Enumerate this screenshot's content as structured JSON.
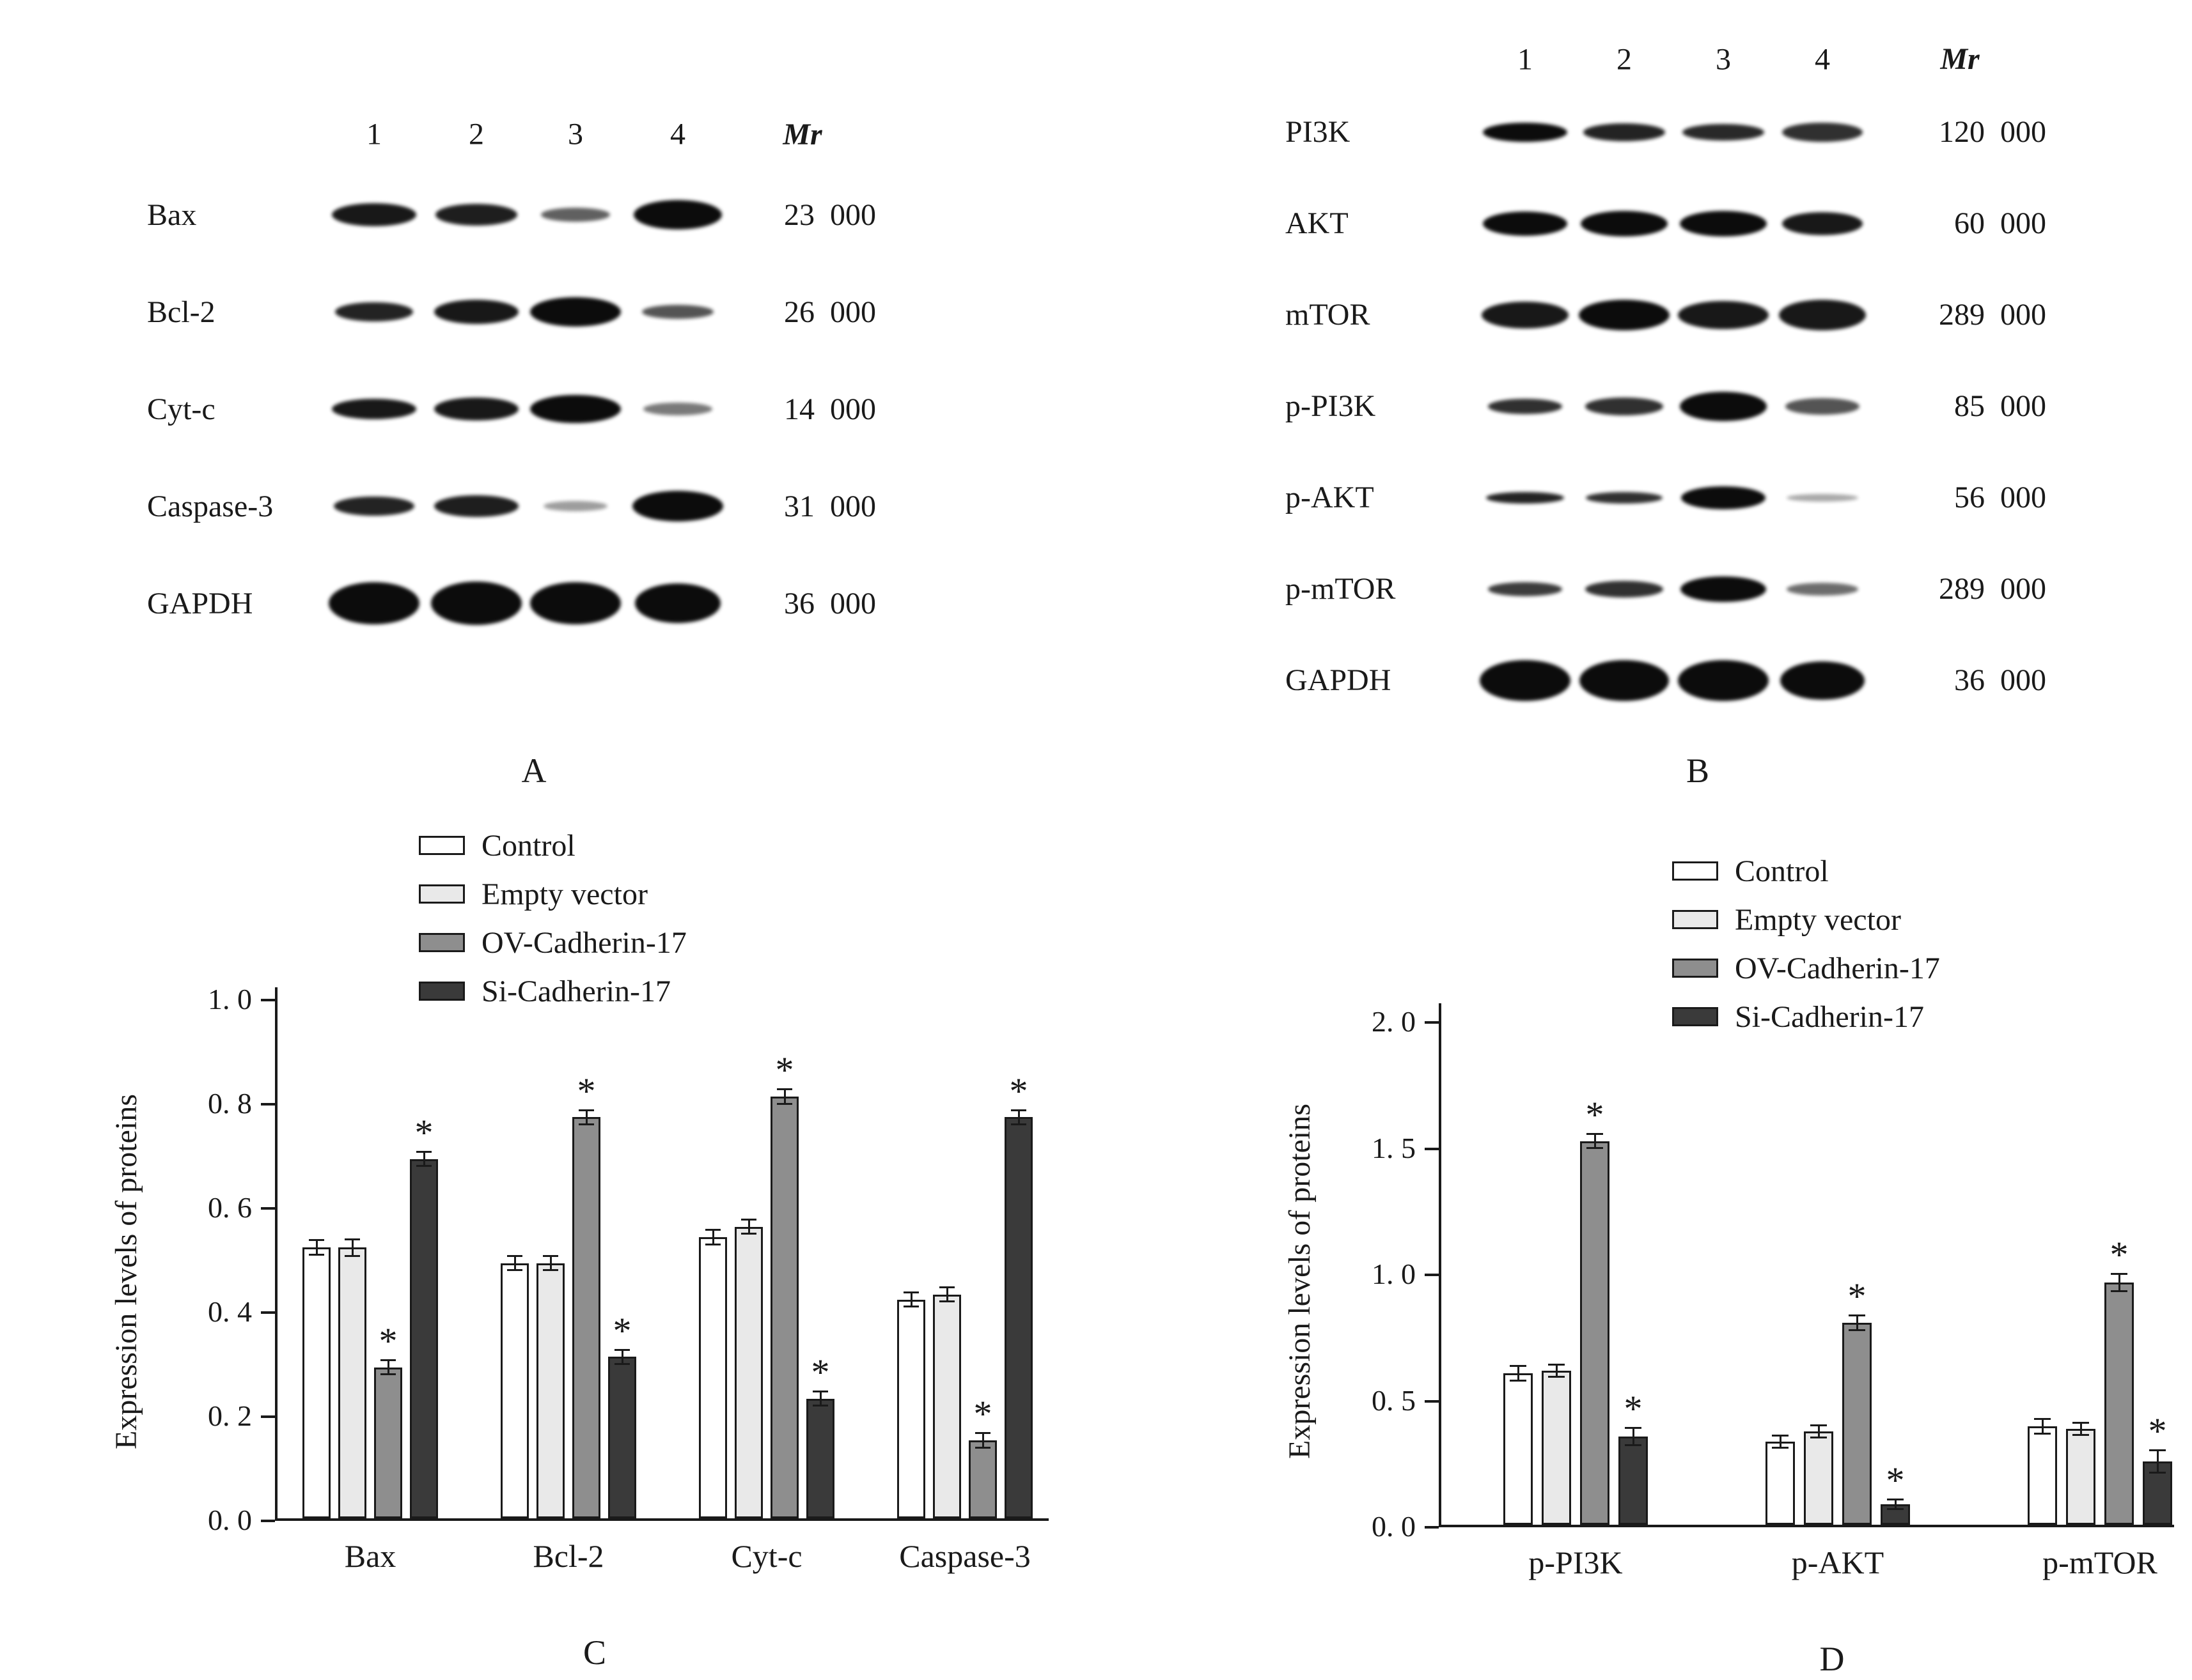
{
  "panels": {
    "A": {
      "label": "A",
      "lane_headers": [
        "1",
        "2",
        "3",
        "4"
      ],
      "mr_header": "Mr",
      "rows": [
        {
          "protein": "Bax",
          "mr": "23  000",
          "bands": [
            [
              132,
              36,
              0.95
            ],
            [
              128,
              34,
              0.92
            ],
            [
              108,
              22,
              0.65
            ],
            [
              138,
              46,
              1
            ]
          ]
        },
        {
          "protein": "Bcl-2",
          "mr": "26  000",
          "bands": [
            [
              122,
              30,
              0.9
            ],
            [
              132,
              38,
              0.95
            ],
            [
              142,
              46,
              1
            ],
            [
              112,
              22,
              0.7
            ]
          ]
        },
        {
          "protein": "Cyt-c",
          "mr": "14  000",
          "bands": [
            [
              132,
              32,
              0.95
            ],
            [
              132,
              36,
              0.95
            ],
            [
              142,
              44,
              1
            ],
            [
              108,
              20,
              0.55
            ]
          ]
        },
        {
          "protein": "Caspase-3",
          "mr": "31  000",
          "bands": [
            [
              126,
              30,
              0.9
            ],
            [
              132,
              34,
              0.92
            ],
            [
              100,
              16,
              0.4
            ],
            [
              142,
              48,
              1
            ]
          ]
        },
        {
          "protein": "GAPDH",
          "mr": "36  000",
          "bands": [
            [
              142,
              66,
              1
            ],
            [
              142,
              68,
              1
            ],
            [
              142,
              66,
              1
            ],
            [
              134,
              62,
              1
            ]
          ]
        }
      ]
    },
    "B": {
      "label": "B",
      "lane_headers": [
        "1",
        "2",
        "3",
        "4"
      ],
      "mr_header": "Mr",
      "rows": [
        {
          "protein": "PI3K",
          "mr": "120  000",
          "bands": [
            [
              132,
              30,
              1
            ],
            [
              128,
              28,
              0.9
            ],
            [
              128,
              26,
              0.88
            ],
            [
              126,
              30,
              0.85
            ]
          ]
        },
        {
          "protein": "AKT",
          "mr": "60  000",
          "bands": [
            [
              132,
              38,
              1
            ],
            [
              136,
              40,
              1
            ],
            [
              136,
              40,
              1
            ],
            [
              126,
              36,
              0.95
            ]
          ]
        },
        {
          "protein": "mTOR",
          "mr": "289  000",
          "bands": [
            [
              136,
              42,
              0.95
            ],
            [
              142,
              48,
              1
            ],
            [
              142,
              44,
              0.95
            ],
            [
              136,
              48,
              0.95
            ]
          ]
        },
        {
          "protein": "p-PI3K",
          "mr": "85  000",
          "bands": [
            [
              116,
              24,
              0.85
            ],
            [
              122,
              28,
              0.85
            ],
            [
              136,
              46,
              1
            ],
            [
              116,
              26,
              0.7
            ]
          ]
        },
        {
          "protein": "p-AKT",
          "mr": "56  000",
          "bands": [
            [
              122,
              18,
              0.9
            ],
            [
              120,
              18,
              0.85
            ],
            [
              132,
              36,
              1
            ],
            [
              112,
              12,
              0.35
            ]
          ]
        },
        {
          "protein": "p-mTOR",
          "mr": "289  000",
          "bands": [
            [
              116,
              22,
              0.8
            ],
            [
              122,
              26,
              0.85
            ],
            [
              134,
              40,
              1
            ],
            [
              112,
              20,
              0.6
            ]
          ]
        },
        {
          "protein": "GAPDH",
          "mr": "36  000",
          "bands": [
            [
              142,
              64,
              1
            ],
            [
              140,
              64,
              1
            ],
            [
              142,
              64,
              1
            ],
            [
              132,
              60,
              1
            ]
          ]
        }
      ]
    },
    "C": {
      "label": "C"
    },
    "D": {
      "label": "D"
    }
  },
  "chart_data": [
    {
      "id": "C",
      "type": "bar",
      "title": "",
      "xlabel": "",
      "ylabel": "Expression levels of proteins",
      "categories": [
        "Bax",
        "Bcl-2",
        "Cyt-c",
        "Caspase-3"
      ],
      "series": [
        {
          "name": "Control",
          "color": "#ffffff",
          "values": [
            0.52,
            0.49,
            0.54,
            0.42
          ],
          "errors": [
            0.012,
            0.012,
            0.012,
            0.012
          ],
          "sig": [
            false,
            false,
            false,
            false
          ]
        },
        {
          "name": "Empty vector",
          "color": "#e9e9e9",
          "values": [
            0.52,
            0.49,
            0.56,
            0.43
          ],
          "errors": [
            0.014,
            0.012,
            0.012,
            0.012
          ],
          "sig": [
            false,
            false,
            false,
            false
          ]
        },
        {
          "name": "OV-Cadherin-17",
          "color": "#8e8e8e",
          "values": [
            0.29,
            0.77,
            0.81,
            0.15
          ],
          "errors": [
            0.012,
            0.012,
            0.012,
            0.012
          ],
          "sig": [
            true,
            true,
            true,
            true
          ]
        },
        {
          "name": "Si-Cadherin-17",
          "color": "#3a3a3a",
          "values": [
            0.69,
            0.31,
            0.23,
            0.77
          ],
          "errors": [
            0.012,
            0.012,
            0.012,
            0.012
          ],
          "sig": [
            true,
            true,
            true,
            true
          ]
        }
      ],
      "ylim": [
        0,
        1.0
      ],
      "yticks": [
        0,
        0.2,
        0.4,
        0.6,
        0.8,
        1.0
      ],
      "ytick_labels": [
        "0. 0",
        "0. 2",
        "0. 4",
        "0. 6",
        "0. 8",
        "1. 0"
      ],
      "sig_marker": "*",
      "grid": false,
      "legend_position": "above-top-left"
    },
    {
      "id": "D",
      "type": "bar",
      "title": "",
      "xlabel": "",
      "ylabel": "Expression levels of proteins",
      "categories": [
        "p-PI3K",
        "p-AKT",
        "p-mTOR"
      ],
      "series": [
        {
          "name": "Control",
          "color": "#ffffff",
          "values": [
            0.6,
            0.33,
            0.39
          ],
          "errors": [
            0.025,
            0.02,
            0.025
          ],
          "sig": [
            false,
            false,
            false
          ]
        },
        {
          "name": "Empty vector",
          "color": "#e9e9e9",
          "values": [
            0.61,
            0.37,
            0.38
          ],
          "errors": [
            0.02,
            0.02,
            0.02
          ],
          "sig": [
            false,
            false,
            false
          ]
        },
        {
          "name": "OV-Cadherin-17",
          "color": "#8e8e8e",
          "values": [
            1.52,
            0.8,
            0.96
          ],
          "errors": [
            0.025,
            0.025,
            0.03
          ],
          "sig": [
            true,
            true,
            true
          ]
        },
        {
          "name": "Si-Cadherin-17",
          "color": "#3a3a3a",
          "values": [
            0.35,
            0.08,
            0.25
          ],
          "errors": [
            0.03,
            0.015,
            0.04
          ],
          "sig": [
            true,
            true,
            true
          ]
        }
      ],
      "ylim": [
        0,
        2.0
      ],
      "yticks": [
        0,
        0.5,
        1.0,
        1.5,
        2.0
      ],
      "ytick_labels": [
        "0. 0",
        "0. 5",
        "1. 0",
        "1. 5",
        "2. 0"
      ],
      "sig_marker": "*",
      "grid": false,
      "legend_position": "above-top-left"
    }
  ]
}
